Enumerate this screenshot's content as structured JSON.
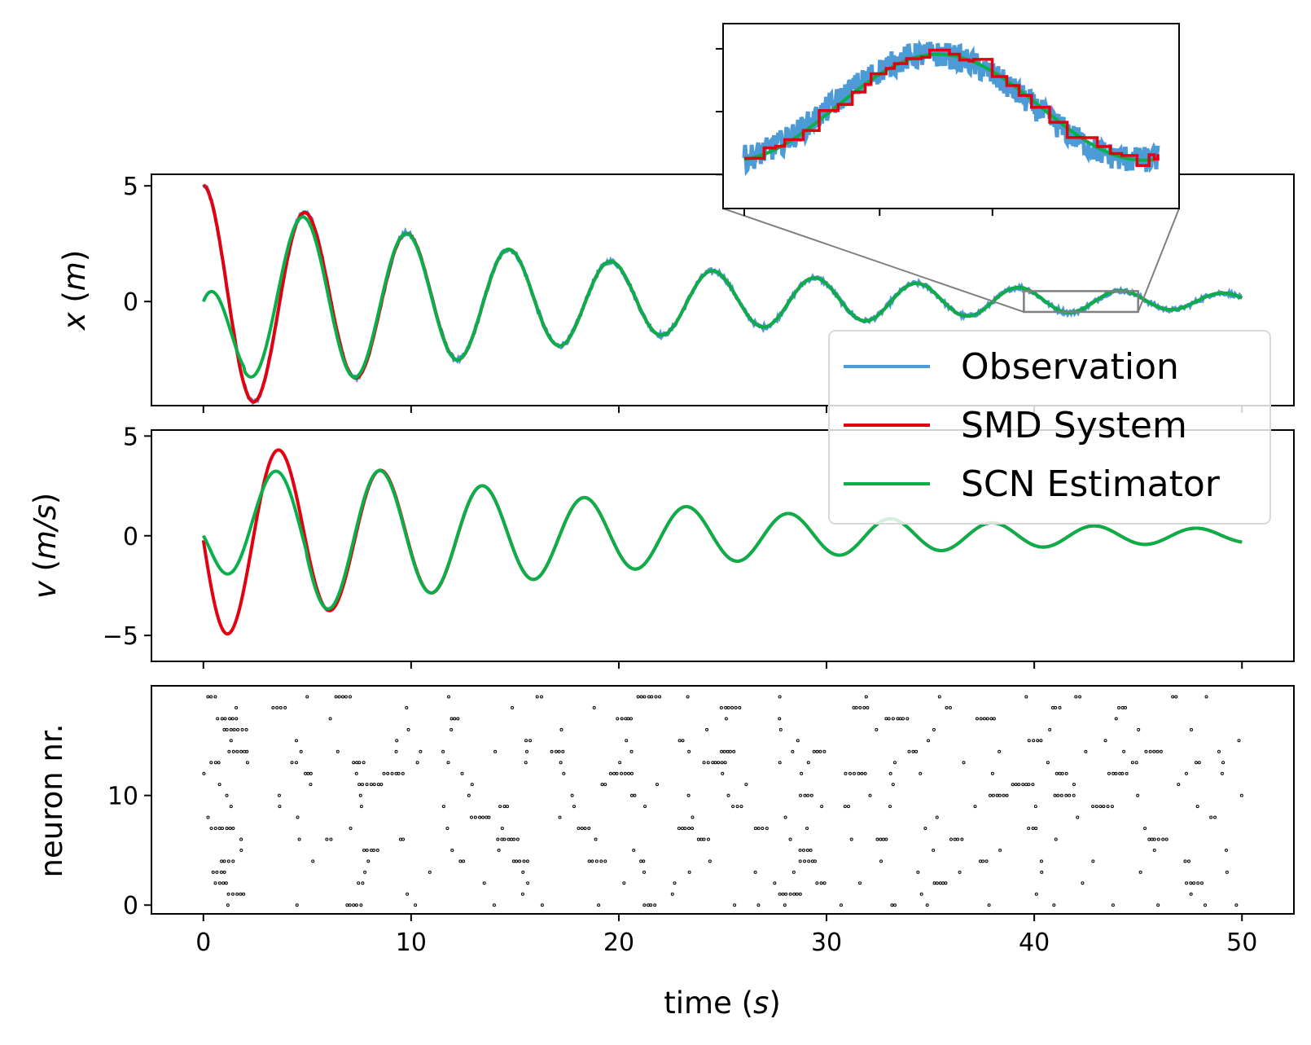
{
  "chart_data": [
    {
      "panel": "position",
      "type": "line",
      "ylabel_var": "x",
      "ylabel_unit": "m",
      "yticks": [
        0,
        5
      ],
      "ylim": [
        -4.5,
        5.5
      ],
      "xlim": [
        -2.5,
        52.5
      ],
      "xticks": [
        0,
        10,
        20,
        30,
        40,
        50
      ],
      "series": [
        {
          "name": "Observation",
          "color": "#4c9ad6",
          "noisy": true,
          "amp0": 5.0,
          "decay": 0.055,
          "omega": 1.28,
          "phase": 0,
          "offset": 0.03
        },
        {
          "name": "SMD System",
          "color": "#e3000f",
          "amp0": 5.0,
          "decay": 0.055,
          "omega": 1.28,
          "phase": 0,
          "offset": 0.03
        },
        {
          "name": "SCN Estimator",
          "color": "#0aaf4a",
          "estimator": true,
          "start": 0,
          "amp0": 5.0,
          "decay": 0.055,
          "omega": 1.28,
          "phase": 0,
          "offset": 0.03
        }
      ],
      "zoom_box_x": [
        39.5,
        45.0
      ],
      "zoom_box_y": [
        -0.45,
        0.45
      ]
    },
    {
      "panel": "velocity",
      "type": "line",
      "ylabel_var": "v",
      "ylabel_unit": "m/s",
      "yticks": [
        -5,
        0,
        5
      ],
      "ylim": [
        -6.3,
        5.3
      ],
      "xlim": [
        -2.5,
        52.5
      ],
      "xticks": [
        0,
        10,
        20,
        30,
        40,
        50
      ],
      "series": [
        {
          "name": "SMD System",
          "color": "#e3000f"
        },
        {
          "name": "SCN Estimator",
          "color": "#0aaf4a"
        }
      ]
    },
    {
      "panel": "spikes",
      "type": "scatter",
      "ylabel": "neuron nr.",
      "yticks": [
        0,
        10
      ],
      "ylim": [
        -0.8,
        20
      ],
      "xlim": [
        -2.5,
        52.5
      ],
      "xticks": [
        0,
        10,
        20,
        30,
        40,
        50
      ],
      "xtick_labels": [
        "0",
        "10",
        "20",
        "30",
        "40",
        "50"
      ],
      "xlabel_text": "time (",
      "xlabel_var": "s",
      "xlabel_close": ")",
      "neurons": 20
    }
  ],
  "legend": {
    "placement": "lower-right",
    "items": [
      {
        "label": "Observation",
        "color": "#4c9ad6"
      },
      {
        "label": "SMD System",
        "color": "#e3000f"
      },
      {
        "label": "SCN Estimator",
        "color": "#0aaf4a"
      }
    ]
  },
  "inset": {
    "placement": "top-right",
    "shows": "zoom of x panel",
    "x_range": [
      39.5,
      45.0
    ],
    "y_range": [
      -0.45,
      0.45
    ]
  },
  "tick_labels": {
    "x_yticks": [
      "0",
      "5"
    ],
    "v_yticks": [
      "−5",
      "0",
      "5"
    ],
    "spike_yticks": [
      "0",
      "10"
    ]
  }
}
